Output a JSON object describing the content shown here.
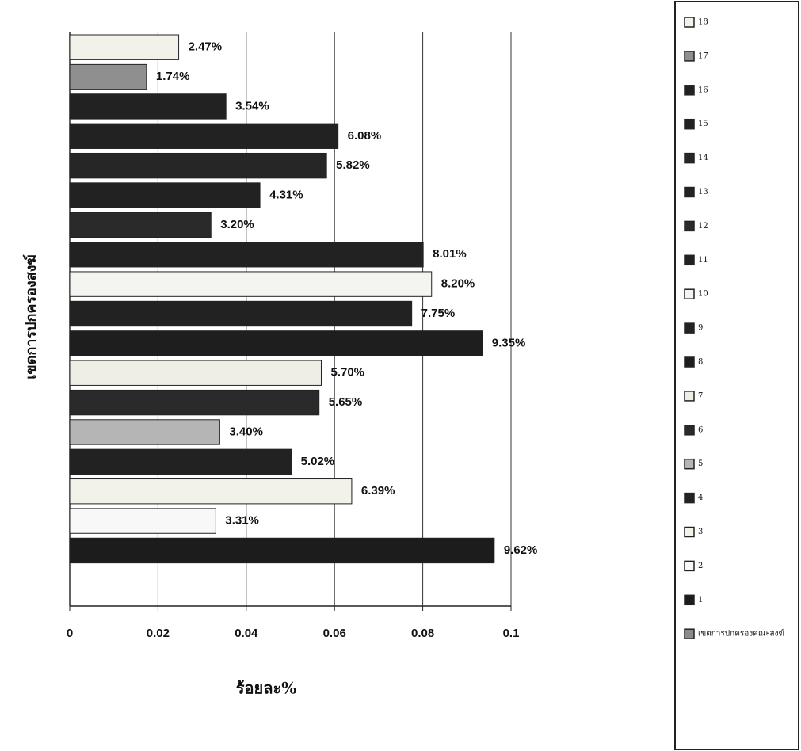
{
  "chart_data": {
    "type": "bar",
    "orientation": "horizontal",
    "xlabel": "ร้อยละ%",
    "ylabel": "เขตการปกครองสงฆ์",
    "xlim": [
      0,
      0.1
    ],
    "xticks": [
      0,
      0.02,
      0.04,
      0.06,
      0.08,
      0.1
    ],
    "grid": true,
    "legend": "right",
    "series": [
      {
        "name": "18",
        "color": "#f2f2ea",
        "values": [
          0.0247
        ],
        "value_labels": [
          "2.47%"
        ]
      },
      {
        "name": "17",
        "color": "#8f8f8f",
        "values": [
          0.0174
        ],
        "value_labels": [
          "1.74%"
        ]
      },
      {
        "name": "16",
        "color": "#222222",
        "values": [
          0.0354
        ],
        "value_labels": [
          "3.54%"
        ]
      },
      {
        "name": "15",
        "color": "#222222",
        "values": [
          0.0608
        ],
        "value_labels": [
          "6.08%"
        ]
      },
      {
        "name": "14",
        "color": "#262626",
        "values": [
          0.0582
        ],
        "value_labels": [
          "5.82%"
        ]
      },
      {
        "name": "13",
        "color": "#222222",
        "values": [
          0.0431
        ],
        "value_labels": [
          "4.31%"
        ]
      },
      {
        "name": "12",
        "color": "#2a2a2a",
        "values": [
          0.032
        ],
        "value_labels": [
          "3.20%"
        ]
      },
      {
        "name": "11",
        "color": "#222222",
        "values": [
          0.0801
        ],
        "value_labels": [
          "8.01%"
        ]
      },
      {
        "name": "10",
        "color": "#f4f4f0",
        "values": [
          0.082
        ],
        "value_labels": [
          "8.20%"
        ]
      },
      {
        "name": "9",
        "color": "#222222",
        "values": [
          0.0775
        ],
        "value_labels": [
          "7.75%"
        ]
      },
      {
        "name": "8",
        "color": "#1e1e1e",
        "values": [
          0.0935
        ],
        "value_labels": [
          "9.35%"
        ]
      },
      {
        "name": "7",
        "color": "#eeeee6",
        "values": [
          0.057
        ],
        "value_labels": [
          "5.70%"
        ]
      },
      {
        "name": "6",
        "color": "#2a2a2a",
        "values": [
          0.0565
        ],
        "value_labels": [
          "5.65%"
        ]
      },
      {
        "name": "5",
        "color": "#b5b5b5",
        "values": [
          0.034
        ],
        "value_labels": [
          "3.40%"
        ]
      },
      {
        "name": "4",
        "color": "#222222",
        "values": [
          0.0502
        ],
        "value_labels": [
          "5.02%"
        ]
      },
      {
        "name": "3",
        "color": "#f2f2ea",
        "values": [
          0.0639
        ],
        "value_labels": [
          "6.39%"
        ]
      },
      {
        "name": "2",
        "color": "#f8f8f8",
        "values": [
          0.0331
        ],
        "value_labels": [
          "3.31%"
        ]
      },
      {
        "name": "1",
        "color": "#1c1c1c",
        "values": [
          0.0962
        ],
        "value_labels": [
          "9.62%"
        ]
      },
      {
        "name": "เขตการปกครองคณะสงฆ์",
        "color": "#8a8a8a",
        "values": [
          null
        ]
      }
    ]
  }
}
